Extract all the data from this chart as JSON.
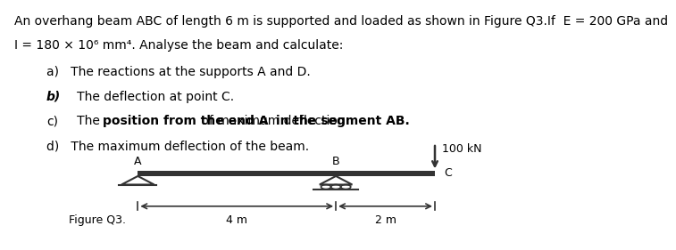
{
  "title_line1": "An overhang beam ABC of length 6 m is supported and loaded as shown in Figure Q3.If  E = 200 GPa and",
  "title_line2": "I = 180 × 10⁶ mm⁴. Analyse the beam and calculate:",
  "beam_color": "#333333",
  "load_label": "100 kN",
  "dim_label_left": "4 m",
  "dim_label_right": "2 m",
  "figure_label": "Figure Q3.",
  "point_A_label": "A",
  "point_B_label": "B",
  "point_C_label": "C",
  "background_color": "#ffffff",
  "text_color": "#000000",
  "fontsize_body": 10,
  "fontsize_diagram": 9
}
